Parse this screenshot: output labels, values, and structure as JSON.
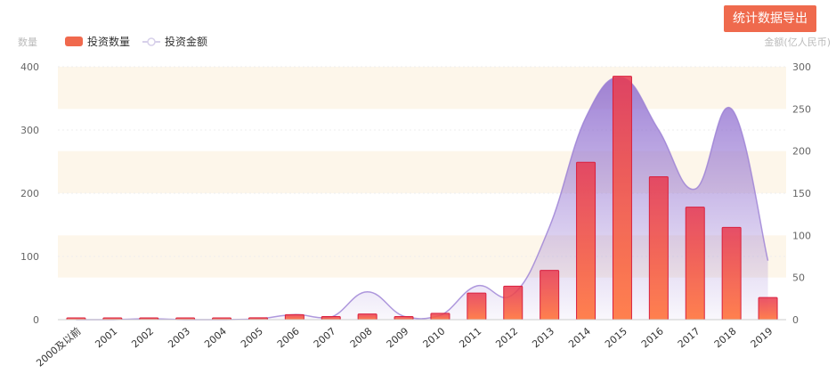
{
  "toolbar": {
    "export_label": "统计数据导出"
  },
  "chart_data": {
    "type": "bar",
    "title": "",
    "y_left_label": "数量",
    "y_right_label": "金额(亿人民币)",
    "categories": [
      "2000及以前",
      "2001",
      "2002",
      "2003",
      "2004",
      "2005",
      "2006",
      "2007",
      "2008",
      "2009",
      "2010",
      "2011",
      "2012",
      "2013",
      "2014",
      "2015",
      "2016",
      "2017",
      "2018",
      "2019"
    ],
    "series": [
      {
        "name": "投资数量",
        "type": "bar",
        "axis": "left",
        "color": "#f0694d",
        "values": [
          2,
          1,
          2,
          1,
          1,
          3,
          8,
          5,
          9,
          5,
          10,
          42,
          53,
          78,
          249,
          385,
          226,
          178,
          146,
          35
        ]
      },
      {
        "name": "投资金额",
        "type": "area",
        "axis": "right",
        "color": "#9b7fd4",
        "values": [
          0,
          0,
          1,
          0,
          0,
          1,
          6,
          3,
          33,
          4,
          5,
          40,
          30,
          110,
          240,
          287,
          225,
          155,
          250,
          70
        ]
      }
    ],
    "y_left_range": [
      0,
      400
    ],
    "y_left_ticks": [
      "0",
      "100",
      "200",
      "300",
      "400"
    ],
    "y_right_range": [
      0,
      300
    ],
    "y_right_ticks": [
      "0",
      "50",
      "100",
      "150",
      "200",
      "250",
      "300"
    ],
    "legend": [
      "投资数量",
      "投资金额"
    ],
    "legend_position": "top-left",
    "grid": true,
    "bands": true
  }
}
